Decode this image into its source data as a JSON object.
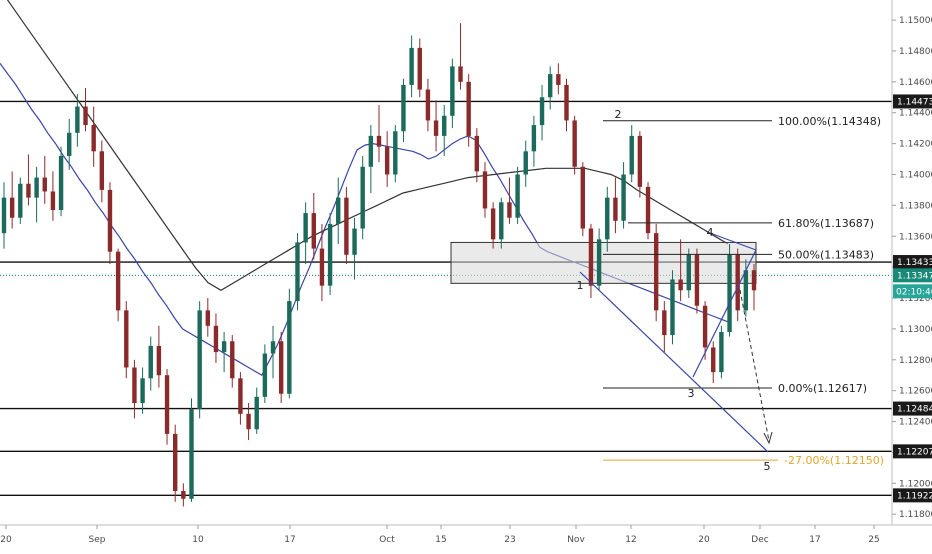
{
  "chart_data": {
    "type": "candlestick",
    "instrument_hint": "EURUSD",
    "colors": {
      "bull": "#1b6a5a",
      "bear": "#8b2a2a",
      "ma_blue": "#3a45a8",
      "ma_black": "#333333",
      "zone_fill": "#d9d9d9",
      "last_price_tag": "#19897a",
      "countdown_tag": "#26a69a",
      "fib_ext_color": "#e0a62e",
      "level_tag": "#1a1a1a"
    },
    "y_axis": {
      "range": [
        1.1173,
        1.1513
      ],
      "ticks": [
        "1.15000",
        "1.14800",
        "1.14600",
        "1.14400",
        "1.14200",
        "1.14000",
        "1.13800",
        "1.13600",
        "1.13400",
        "1.13200",
        "1.13000",
        "1.12800",
        "1.12600",
        "1.12400",
        "1.12200",
        "1.12000",
        "1.11800"
      ]
    },
    "x_axis": {
      "ticks": [
        "20",
        "Sep",
        "10",
        "17",
        "Oct",
        "15",
        "23",
        "Nov",
        "12",
        "20",
        "Dec",
        "17",
        "25"
      ]
    },
    "horizontal_levels": [
      {
        "price": 1.14473,
        "label": "1.14473"
      },
      {
        "price": 1.13433,
        "label": "1.13433"
      },
      {
        "price": 1.12484,
        "label": "1.12484"
      },
      {
        "price": 1.12207,
        "label": "1.12207"
      },
      {
        "price": 1.11922,
        "label": "1.11922"
      }
    ],
    "last_price": {
      "price": 1.13347,
      "label": "1.13347",
      "countdown": "02:10:46"
    },
    "zone": {
      "top": 1.1356,
      "bottom": 1.13295
    },
    "fibonacci": [
      {
        "label": "100.00%(1.14348)",
        "price": 1.14348
      },
      {
        "label": "61.80%(1.13687)",
        "price": 1.13687
      },
      {
        "label": "50.00%(1.13483)",
        "price": 1.13483
      },
      {
        "label": "0.00%(1.12617)",
        "price": 1.12617
      },
      {
        "label": "-27.00%(1.12150)",
        "price": 1.1215
      }
    ],
    "waves": [
      "1",
      "2",
      "3",
      "4",
      "5"
    ],
    "series": [
      {
        "type": "candlestick",
        "values": [
          [
            1.1362,
            1.1395,
            1.1352,
            1.1385
          ],
          [
            1.1385,
            1.1402,
            1.1365,
            1.1372
          ],
          [
            1.1372,
            1.1398,
            1.1368,
            1.1394
          ],
          [
            1.1394,
            1.1413,
            1.138,
            1.1385
          ],
          [
            1.1385,
            1.1405,
            1.1369,
            1.1398
          ],
          [
            1.1398,
            1.1412,
            1.1381,
            1.1389
          ],
          [
            1.1389,
            1.1402,
            1.137,
            1.1377
          ],
          [
            1.1377,
            1.1418,
            1.1373,
            1.1412
          ],
          [
            1.1412,
            1.1436,
            1.1403,
            1.1427
          ],
          [
            1.1427,
            1.1452,
            1.1418,
            1.1444
          ],
          [
            1.1444,
            1.1456,
            1.1428,
            1.1432
          ],
          [
            1.1432,
            1.1444,
            1.1405,
            1.1415
          ],
          [
            1.1415,
            1.1422,
            1.1382,
            1.139
          ],
          [
            1.139,
            1.1395,
            1.1342,
            1.135
          ],
          [
            1.135,
            1.1352,
            1.1305,
            1.1312
          ],
          [
            1.1312,
            1.1318,
            1.1268,
            1.1275
          ],
          [
            1.1275,
            1.128,
            1.1242,
            1.1252
          ],
          [
            1.1252,
            1.1275,
            1.1245,
            1.1268
          ],
          [
            1.1268,
            1.1295,
            1.126,
            1.1289
          ],
          [
            1.1289,
            1.1302,
            1.1262,
            1.127
          ],
          [
            1.127,
            1.1274,
            1.1225,
            1.1232
          ],
          [
            1.1232,
            1.1238,
            1.1188,
            1.1195
          ],
          [
            1.1195,
            1.12,
            1.1185,
            1.119
          ],
          [
            1.119,
            1.1255,
            1.1188,
            1.1248
          ],
          [
            1.1248,
            1.1318,
            1.1242,
            1.1312
          ],
          [
            1.1312,
            1.132,
            1.1295,
            1.1302
          ],
          [
            1.1302,
            1.131,
            1.1278,
            1.1285
          ],
          [
            1.1285,
            1.1298,
            1.1272,
            1.1292
          ],
          [
            1.1292,
            1.1296,
            1.1262,
            1.1268
          ],
          [
            1.1268,
            1.1272,
            1.1238,
            1.1245
          ],
          [
            1.1245,
            1.1252,
            1.1228,
            1.1235
          ],
          [
            1.1235,
            1.1262,
            1.1232,
            1.1256
          ],
          [
            1.1256,
            1.129,
            1.1252,
            1.1284
          ],
          [
            1.1284,
            1.1302,
            1.1268,
            1.1292
          ],
          [
            1.1292,
            1.1298,
            1.1252,
            1.1258
          ],
          [
            1.1258,
            1.1326,
            1.1255,
            1.1318
          ],
          [
            1.1318,
            1.1362,
            1.1312,
            1.1356
          ],
          [
            1.1356,
            1.1382,
            1.1342,
            1.1375
          ],
          [
            1.1375,
            1.1388,
            1.1345,
            1.1352
          ],
          [
            1.1352,
            1.1368,
            1.1318,
            1.1328
          ],
          [
            1.1328,
            1.1375,
            1.1322,
            1.1368
          ],
          [
            1.1368,
            1.1398,
            1.1355,
            1.1385
          ],
          [
            1.1385,
            1.1392,
            1.1342,
            1.1348
          ],
          [
            1.1348,
            1.1372,
            1.1332,
            1.1365
          ],
          [
            1.1365,
            1.1412,
            1.1358,
            1.1405
          ],
          [
            1.1405,
            1.1432,
            1.1388,
            1.1425
          ],
          [
            1.1425,
            1.1445,
            1.1408,
            1.1418
          ],
          [
            1.1418,
            1.1428,
            1.1392,
            1.14
          ],
          [
            1.14,
            1.1432,
            1.1395,
            1.1428
          ],
          [
            1.1428,
            1.1462,
            1.1421,
            1.1458
          ],
          [
            1.1458,
            1.149,
            1.145,
            1.1482
          ],
          [
            1.1482,
            1.1488,
            1.145,
            1.1455
          ],
          [
            1.1455,
            1.1462,
            1.1428,
            1.1435
          ],
          [
            1.1435,
            1.1448,
            1.1415,
            1.1425
          ],
          [
            1.1425,
            1.1445,
            1.1412,
            1.1438
          ],
          [
            1.1438,
            1.1475,
            1.143,
            1.147
          ],
          [
            1.147,
            1.1498,
            1.1455,
            1.146
          ],
          [
            1.146,
            1.1465,
            1.1418,
            1.1425
          ],
          [
            1.1425,
            1.143,
            1.1395,
            1.1402
          ],
          [
            1.1402,
            1.1408,
            1.1372,
            1.1378
          ],
          [
            1.1378,
            1.1382,
            1.1352,
            1.1358
          ],
          [
            1.1358,
            1.1385,
            1.1352,
            1.1382
          ],
          [
            1.1382,
            1.1398,
            1.1368,
            1.1372
          ],
          [
            1.1372,
            1.1405,
            1.1368,
            1.14
          ],
          [
            1.14,
            1.1422,
            1.1392,
            1.1415
          ],
          [
            1.1415,
            1.1438,
            1.1405,
            1.1432
          ],
          [
            1.1432,
            1.1458,
            1.1422,
            1.145
          ],
          [
            1.145,
            1.147,
            1.1442,
            1.1465
          ],
          [
            1.1465,
            1.1472,
            1.1452,
            1.1458
          ],
          [
            1.1458,
            1.1462,
            1.1428,
            1.1435
          ],
          [
            1.1435,
            1.1438,
            1.14,
            1.1405
          ],
          [
            1.1405,
            1.1408,
            1.136,
            1.1365
          ],
          [
            1.1365,
            1.1368,
            1.132,
            1.1328
          ],
          [
            1.1328,
            1.1365,
            1.1325,
            1.1358
          ],
          [
            1.1358,
            1.1392,
            1.135,
            1.1385
          ],
          [
            1.1385,
            1.1398,
            1.1362,
            1.137
          ],
          [
            1.137,
            1.1408,
            1.1365,
            1.14
          ],
          [
            1.14,
            1.1432,
            1.1395,
            1.1425
          ],
          [
            1.1425,
            1.1428,
            1.1385,
            1.1392
          ],
          [
            1.1392,
            1.1395,
            1.1358,
            1.1362
          ],
          [
            1.1362,
            1.1368,
            1.1305,
            1.1312
          ],
          [
            1.1312,
            1.1318,
            1.1285,
            1.1296
          ],
          [
            1.1296,
            1.1338,
            1.129,
            1.1332
          ],
          [
            1.1332,
            1.1358,
            1.1318,
            1.1325
          ],
          [
            1.1325,
            1.1352,
            1.132,
            1.1348
          ],
          [
            1.1348,
            1.1352,
            1.131,
            1.1315
          ],
          [
            1.1315,
            1.1318,
            1.128,
            1.1288
          ],
          [
            1.1288,
            1.1292,
            1.1265,
            1.1272
          ],
          [
            1.1272,
            1.1302,
            1.1268,
            1.1298
          ],
          [
            1.1298,
            1.1355,
            1.1295,
            1.1348
          ],
          [
            1.1348,
            1.1352,
            1.1305,
            1.1312
          ],
          [
            1.1312,
            1.1345,
            1.1308,
            1.1338
          ],
          [
            1.1338,
            1.1342,
            1.1312,
            1.1325
          ]
        ]
      },
      {
        "type": "line",
        "name": "",
        "color": "blue",
        "values": [
          1.1472,
          1.1465,
          1.1458,
          1.145,
          1.1442,
          1.1435,
          1.1427,
          1.142,
          1.1412,
          1.1405,
          1.1397,
          1.139,
          1.1382,
          1.1375,
          1.1367,
          1.136,
          1.1352,
          1.1345,
          1.1337,
          1.133,
          1.1322,
          1.1315,
          1.1307,
          1.13,
          1.1297,
          1.1294,
          1.1291,
          1.1288,
          1.1285,
          1.1282,
          1.1279,
          1.1276,
          1.1273,
          1.127,
          1.128,
          1.129,
          1.1302,
          1.1315,
          1.1328,
          1.134,
          1.1353,
          1.1366,
          1.1378,
          1.1391,
          1.1404,
          1.1416,
          1.1419,
          1.142,
          1.1419,
          1.1418,
          1.1417,
          1.1416,
          1.1415,
          1.1413,
          1.141,
          1.1412,
          1.1416,
          1.142,
          1.1423,
          1.1425,
          1.1422,
          1.1414,
          1.1405,
          1.1397,
          1.1388,
          1.1379,
          1.137,
          1.1362,
          1.1353,
          1.135,
          1.1348,
          1.1346,
          1.1344,
          1.1342,
          1.134,
          1.1338,
          1.1336,
          1.1334,
          1.1332,
          1.133,
          1.1328,
          1.1326,
          1.1324,
          1.1322,
          1.132,
          1.1318,
          1.1316,
          1.1314,
          1.1312,
          1.131,
          1.1308,
          1.1306,
          1.1304
        ]
      },
      {
        "type": "line",
        "name": "",
        "color": "black",
        "values": [
          1.152,
          1.1508,
          1.1496,
          1.1484,
          1.1472,
          1.146,
          1.1448,
          1.1436,
          1.1424,
          1.1412,
          1.14,
          1.1388,
          1.1376,
          1.1364,
          1.1352,
          1.134,
          1.133,
          1.1325,
          1.133,
          1.1335,
          1.134,
          1.1345,
          1.135,
          1.1355,
          1.136,
          1.1364,
          1.1368,
          1.1372,
          1.1376,
          1.138,
          1.1384,
          1.1388,
          1.139,
          1.1392,
          1.1394,
          1.1396,
          1.1398,
          1.1399,
          1.14,
          1.1401,
          1.1402,
          1.1403,
          1.1404,
          1.1404,
          1.1404,
          1.1404,
          1.1402,
          1.14,
          1.1396,
          1.139,
          1.1385,
          1.138,
          1.1375,
          1.137,
          1.1365,
          1.136,
          1.1355
        ]
      }
    ]
  }
}
